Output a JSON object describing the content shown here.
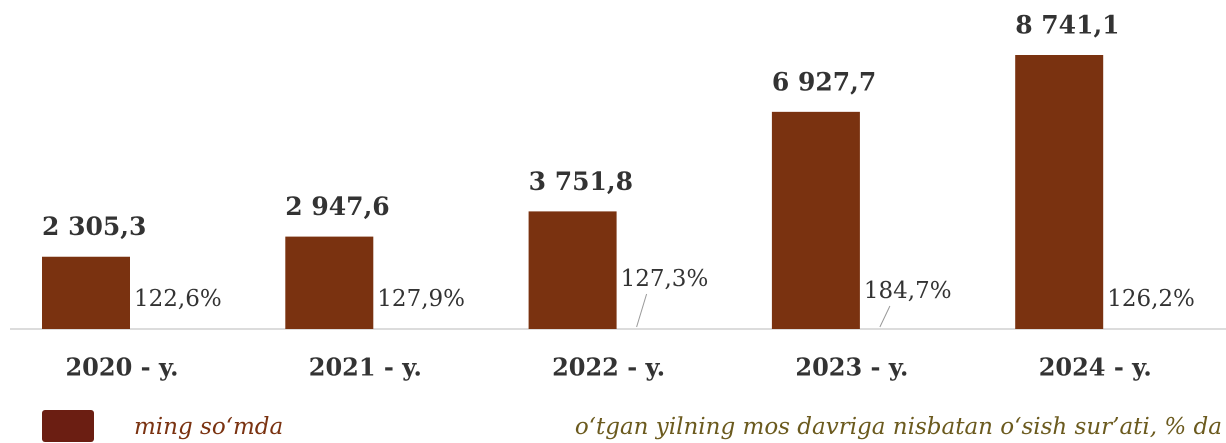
{
  "chart_data": {
    "type": "bar",
    "categories": [
      "2020 - y.",
      "2021 - y.",
      "2022 - y.",
      "2023 - y.",
      "2024 - y."
    ],
    "series": [
      {
        "name": "ming so‘mda",
        "color": "#7a3210",
        "values": [
          2305.3,
          2947.6,
          3751.8,
          6927.7,
          8741.1
        ],
        "value_labels": [
          "2 305,3",
          "2 947,6",
          "3 751,8",
          "6 927,7",
          "8 741,1"
        ]
      },
      {
        "name": "o‘tgan yilning mos davriga nisbatan o‘sish sur’ati, % da",
        "color": "#6b5a1e",
        "values": [
          122.6,
          127.9,
          127.3,
          184.7,
          126.2
        ],
        "value_labels": [
          "122,6%",
          "127,9%",
          "127,3%",
          "184,7%",
          "126,2%"
        ]
      }
    ]
  }
}
